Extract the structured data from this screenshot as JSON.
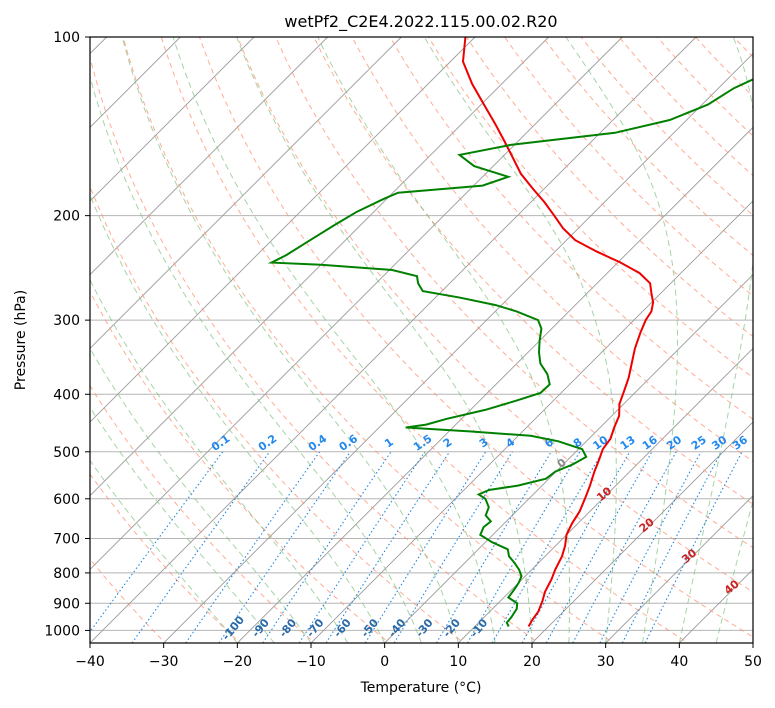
{
  "chart_data": {
    "type": "line",
    "title": "wetPf2_C2E4.2022.115.00.02.R20",
    "xlabel": "Temperature (°C)",
    "ylabel": "Pressure (hPa)",
    "xlim": [
      -40,
      50
    ],
    "ylim": [
      1050,
      100
    ],
    "y_scale": "log",
    "x_ticks": [
      -40,
      -30,
      -20,
      -10,
      0,
      10,
      20,
      30,
      40,
      50
    ],
    "y_ticks": [
      100,
      200,
      300,
      400,
      500,
      600,
      700,
      800,
      900,
      1000
    ],
    "grid": true,
    "skew_note": "isotherms skewed 45 degrees",
    "series": [
      {
        "color": "#ee0000",
        "role": "temperature",
        "points": [
          [
            17.3,
            985
          ],
          [
            16.9,
            960
          ],
          [
            16.6,
            930
          ],
          [
            15.8,
            895
          ],
          [
            14.8,
            860
          ],
          [
            14.0,
            820
          ],
          [
            13.2,
            790
          ],
          [
            12.3,
            750
          ],
          [
            11.3,
            720
          ],
          [
            10.0,
            690
          ],
          [
            9.2,
            660
          ],
          [
            8.6,
            630
          ],
          [
            7.6,
            600
          ],
          [
            6.5,
            570
          ],
          [
            5.2,
            540
          ],
          [
            4.2,
            515
          ],
          [
            3.3,
            495
          ],
          [
            2.9,
            475
          ],
          [
            1.9,
            455
          ],
          [
            1.0,
            435
          ],
          [
            -0.6,
            415
          ],
          [
            -1.7,
            395
          ],
          [
            -2.9,
            375
          ],
          [
            -4.4,
            355
          ],
          [
            -6.0,
            335
          ],
          [
            -7.4,
            315
          ],
          [
            -8.4,
            300
          ],
          [
            -8.8,
            290
          ],
          [
            -9.8,
            280
          ],
          [
            -11.3,
            270
          ],
          [
            -12.8,
            260
          ],
          [
            -15.6,
            250
          ],
          [
            -19.6,
            240
          ],
          [
            -24.3,
            230
          ],
          [
            -28.8,
            220
          ],
          [
            -32.1,
            210
          ],
          [
            -35.0,
            200
          ],
          [
            -38.1,
            190
          ],
          [
            -41.6,
            180
          ],
          [
            -45.2,
            170
          ],
          [
            -48.4,
            160
          ],
          [
            -51.8,
            150
          ],
          [
            -55.5,
            140
          ],
          [
            -59.6,
            130
          ],
          [
            -64.0,
            120
          ],
          [
            -68.3,
            110
          ],
          [
            -71.3,
            100
          ]
        ]
      },
      {
        "color": "#008000",
        "role": "dewpoint",
        "points": [
          [
            14.6,
            985
          ],
          [
            13.8,
            970
          ],
          [
            13.7,
            950
          ],
          [
            13.3,
            920
          ],
          [
            12.6,
            900
          ],
          [
            10.6,
            880
          ],
          [
            10.3,
            850
          ],
          [
            10.0,
            830
          ],
          [
            9.5,
            810
          ],
          [
            8.3,
            790
          ],
          [
            6.8,
            770
          ],
          [
            5.1,
            750
          ],
          [
            4.0,
            730
          ],
          [
            0.9,
            710
          ],
          [
            -1.7,
            690
          ],
          [
            -2.3,
            670
          ],
          [
            -2.1,
            655
          ],
          [
            -3.6,
            640
          ],
          [
            -4.3,
            620
          ],
          [
            -5.9,
            600
          ],
          [
            -7.4,
            590
          ],
          [
            -6.6,
            580
          ],
          [
            -3.3,
            570
          ],
          [
            -0.4,
            555
          ],
          [
            -0.1,
            540
          ],
          [
            1.3,
            525
          ],
          [
            2.1,
            510
          ],
          [
            0.5,
            495
          ],
          [
            -3.8,
            480
          ],
          [
            -8.3,
            470
          ],
          [
            -17.2,
            462
          ],
          [
            -26.4,
            455
          ],
          [
            -24.0,
            450
          ],
          [
            -22.0,
            440
          ],
          [
            -18.0,
            425
          ],
          [
            -15.0,
            410
          ],
          [
            -12.8,
            398
          ],
          [
            -12.7,
            385
          ],
          [
            -14.4,
            370
          ],
          [
            -16.8,
            355
          ],
          [
            -18.5,
            340
          ],
          [
            -20.0,
            325
          ],
          [
            -21.4,
            310
          ],
          [
            -23.0,
            300
          ],
          [
            -27.1,
            290
          ],
          [
            -30.8,
            283
          ],
          [
            -36.6,
            275
          ],
          [
            -42.6,
            268
          ],
          [
            -44.3,
            260
          ],
          [
            -45.4,
            253
          ],
          [
            -49.6,
            247
          ],
          [
            -60.0,
            242
          ],
          [
            -67.0,
            240
          ],
          [
            -66.0,
            233
          ],
          [
            -64.8,
            220
          ],
          [
            -63.5,
            207
          ],
          [
            -62.3,
            197
          ],
          [
            -60.3,
            187
          ],
          [
            -59.3,
            183
          ],
          [
            -48.8,
            178
          ],
          [
            -46.5,
            172
          ],
          [
            -52.6,
            165
          ],
          [
            -56.1,
            158
          ],
          [
            -50.5,
            152
          ],
          [
            -38.0,
            145
          ],
          [
            -32.3,
            138
          ],
          [
            -29.2,
            130
          ],
          [
            -27.9,
            122
          ],
          [
            -25.5,
            115
          ],
          [
            -23.5,
            108
          ],
          [
            -23.0,
            100
          ]
        ]
      }
    ],
    "dry_adiabats_label_C": [
      -100,
      -90,
      -80,
      -70,
      -60,
      -50,
      -40,
      -30,
      -20,
      -10
    ],
    "moist_adiabats_label_C": [
      0,
      10,
      20,
      30,
      40
    ],
    "mixing_ratio_labels": [
      "0.1",
      "0.2",
      "0.4",
      "0.6",
      "1",
      "1.5",
      "2",
      "3",
      "4",
      "6",
      "8",
      "10",
      "13",
      "16",
      "20",
      "25",
      "30",
      "36"
    ],
    "mixing_ratio_values": [
      0.1,
      0.2,
      0.4,
      0.6,
      1,
      1.5,
      2,
      3,
      4,
      6,
      8,
      10,
      13,
      16,
      20,
      25,
      30,
      36
    ],
    "colors": {
      "isotherm": "#9a9a9a",
      "isobar": "#b5b5b5",
      "dry_adiabat": "#ff9070",
      "moist_adiabat": "#80c080",
      "mixing_ratio": "#2288dd",
      "dry_label": "#2a6aaa",
      "moist_label": "#cc2222",
      "mixing_label": "#2288ee",
      "zero_label": "#888888"
    }
  }
}
